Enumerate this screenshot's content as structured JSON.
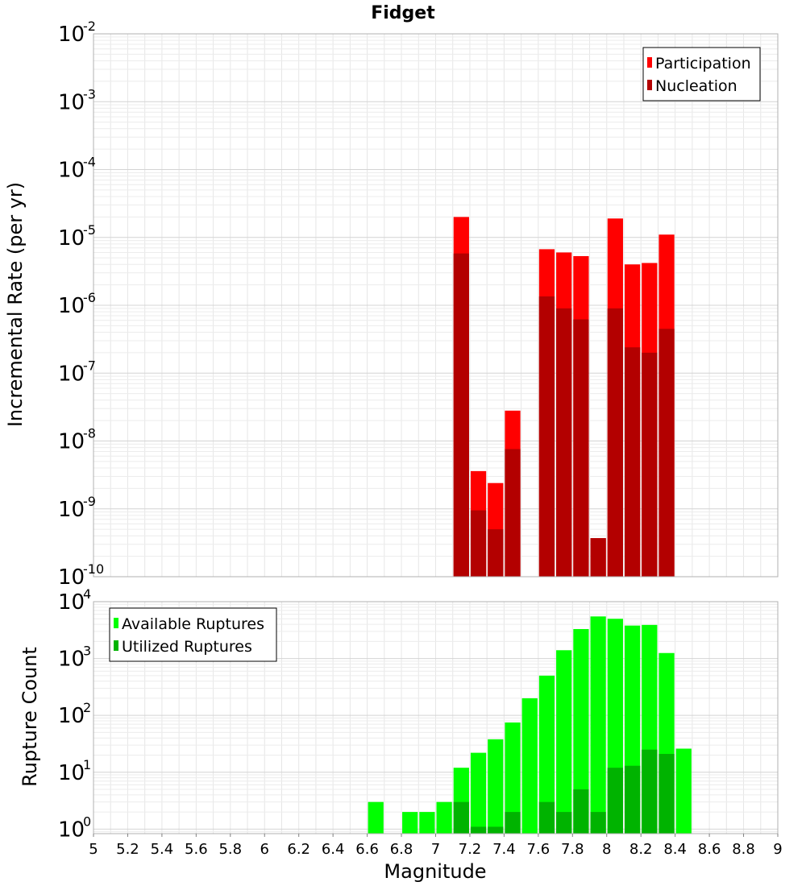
{
  "chart_data": [
    {
      "type": "bar",
      "title": "Fidget",
      "ylabel": "Incremental Rate (per yr)",
      "xlim": [
        5,
        9
      ],
      "ylog": true,
      "ylim_exp": [
        -10,
        -2
      ],
      "y_base_label": "10",
      "y_exponents": [
        "-10",
        "-9",
        "-8",
        "-7",
        "-6",
        "-5",
        "-4",
        "-3",
        "-2"
      ],
      "bar_width": 0.1,
      "legend_position": "top-right",
      "grid": true,
      "series": [
        {
          "name": "Participation",
          "color": "#ff0000",
          "x": [
            7.15,
            7.25,
            7.35,
            7.45,
            7.65,
            7.75,
            7.85,
            7.95,
            8.05,
            8.15,
            8.25,
            8.35
          ],
          "values": [
            2e-05,
            3.6e-09,
            2.4e-09,
            2.8e-08,
            6.7e-06,
            6e-06,
            5.3e-06,
            3.7e-10,
            1.9e-05,
            4e-06,
            4.2e-06,
            1.1e-05
          ]
        },
        {
          "name": "Nucleation",
          "color": "#b30000",
          "x": [
            7.15,
            7.25,
            7.35,
            7.45,
            7.65,
            7.75,
            7.85,
            7.95,
            8.05,
            8.15,
            8.25,
            8.35
          ],
          "values": [
            5.8e-06,
            9.5e-10,
            5e-10,
            7.6e-09,
            1.35e-06,
            9e-07,
            6.2e-07,
            3.7e-10,
            9e-07,
            2.4e-07,
            2e-07,
            4.5e-07
          ]
        }
      ]
    },
    {
      "type": "bar",
      "xlabel": "Magnitude",
      "ylabel": "Rupture Count",
      "xlim": [
        5,
        9
      ],
      "ylog": true,
      "ylim_exp": [
        -0.08,
        4
      ],
      "y_base_label": "10",
      "y_exponents": [
        "0",
        "1",
        "2",
        "3",
        "4"
      ],
      "x_ticks": [
        "5",
        "5.2",
        "5.4",
        "5.6",
        "5.8",
        "6",
        "6.2",
        "6.4",
        "6.6",
        "6.8",
        "7",
        "7.2",
        "7.4",
        "7.6",
        "7.8",
        "8",
        "8.2",
        "8.4",
        "8.6",
        "8.8",
        "9"
      ],
      "bar_width": 0.1,
      "legend_position": "top-left",
      "grid": true,
      "series": [
        {
          "name": "Available Ruptures",
          "color": "#00ff00",
          "x": [
            6.65,
            6.85,
            6.95,
            7.05,
            7.15,
            7.25,
            7.35,
            7.45,
            7.55,
            7.65,
            7.75,
            7.85,
            7.95,
            8.05,
            8.15,
            8.25,
            8.35,
            8.45
          ],
          "values": [
            3,
            2,
            2,
            3,
            12,
            22,
            38,
            75,
            200,
            500,
            1400,
            3300,
            5500,
            5000,
            3800,
            3900,
            1250,
            26
          ]
        },
        {
          "name": "Utilized Ruptures",
          "color": "#00b300",
          "x": [
            7.15,
            7.25,
            7.35,
            7.45,
            7.65,
            7.75,
            7.85,
            7.95,
            8.05,
            8.15,
            8.25,
            8.35
          ],
          "values": [
            3,
            1.1,
            1.1,
            2,
            3,
            2,
            5,
            2,
            12,
            13,
            25,
            21
          ]
        }
      ]
    }
  ]
}
